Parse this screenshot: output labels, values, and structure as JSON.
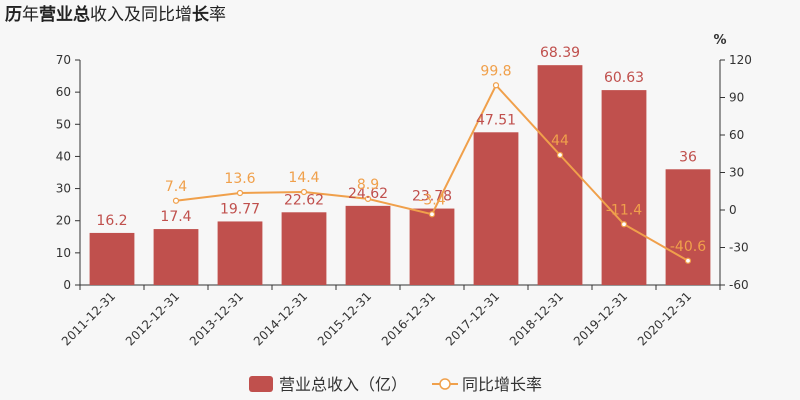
{
  "title_parts": [
    {
      "text": "历",
      "bold": true
    },
    {
      "text": "年",
      "bold": false
    },
    {
      "text": "营业总",
      "bold": true
    },
    {
      "text": "收入及同比增",
      "bold": false
    },
    {
      "text": "长",
      "bold": true
    },
    {
      "text": "率",
      "bold": false
    }
  ],
  "colors": {
    "bar": "#c0504d",
    "line": "#f0a04b"
  },
  "chart_data": {
    "type": "bar",
    "title": "历年营业总收入及同比增长率",
    "categories": [
      "2011-12-31",
      "2012-12-31",
      "2013-12-31",
      "2014-12-31",
      "2015-12-31",
      "2016-12-31",
      "2017-12-31",
      "2018-12-31",
      "2019-12-31",
      "2020-12-31"
    ],
    "left_axis": {
      "ylim": [
        0,
        70
      ],
      "ticks": [
        "0",
        "10",
        "20",
        "30",
        "40",
        "50",
        "60",
        "70"
      ]
    },
    "right_axis": {
      "label": "%",
      "ylim": [
        -60,
        120
      ],
      "ticks": [
        "-60",
        "-30",
        "0",
        "30",
        "60",
        "90",
        "120"
      ]
    },
    "series": [
      {
        "name": "营业总收入（亿）",
        "type": "bar",
        "axis": "left",
        "values": [
          16.2,
          17.4,
          19.77,
          22.62,
          24.62,
          23.78,
          47.51,
          68.39,
          60.63,
          36
        ],
        "labels": [
          "16.2",
          "17.4",
          "19.77",
          "22.62",
          "24.62",
          "23.78",
          "47.51",
          "68.39",
          "60.63",
          "36"
        ]
      },
      {
        "name": "同比增长率",
        "type": "line",
        "axis": "right",
        "values": [
          null,
          7.4,
          13.6,
          14.4,
          8.9,
          -3.4,
          99.8,
          44,
          -11.4,
          -40.6
        ],
        "labels": [
          "",
          "7.4",
          "13.6",
          "14.4",
          "8.9",
          "-3.4",
          "99.8",
          "44",
          "-11.4",
          "-40.6"
        ]
      }
    ],
    "grid": false,
    "legend_position": "bottom-center"
  }
}
